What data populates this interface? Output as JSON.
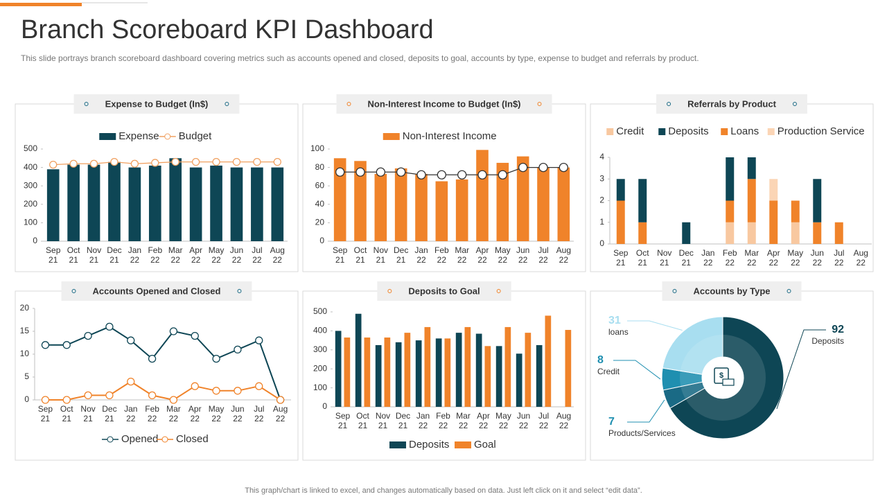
{
  "title": "Branch Scoreboard KPI Dashboard",
  "subtitle": "This slide portrays branch scoreboard dashboard covering metrics such as accounts opened and closed, deposits to goal, accounts by type, expense to budget and referrals by product.",
  "footer": "This graph/chart is linked to excel, and changes automatically based on data. Just left click on it and select “edit data”.",
  "chart_data": [
    {
      "type": "bar",
      "title": "Expense to Budget (In$)",
      "legend": "top",
      "categories": [
        "Sep 21",
        "Oct 21",
        "Nov 21",
        "Dec 21",
        "Jan 22",
        "Feb 22",
        "Mar 22",
        "Apr 22",
        "May 22",
        "Jun 22",
        "Jul 22",
        "Aug 22"
      ],
      "ylim": [
        0,
        500
      ],
      "yticks": [
        0,
        100,
        200,
        300,
        400,
        500
      ],
      "series": [
        {
          "name": "Expense",
          "color": "#0e4655",
          "values": [
            390,
            415,
            415,
            430,
            400,
            410,
            450,
            400,
            410,
            400,
            400,
            400
          ]
        },
        {
          "name": "Budget",
          "color": "#f0a060",
          "type": "line",
          "values": [
            415,
            420,
            420,
            430,
            420,
            425,
            430,
            430,
            430,
            430,
            430,
            430
          ]
        }
      ]
    },
    {
      "type": "bar",
      "title": "Non-Interest Income  to Budget (In$)",
      "legend": "top",
      "categories": [
        "Sep 21",
        "Oct 21",
        "Nov 21",
        "Dec 21",
        "Jan 22",
        "Feb 22",
        "Mar 22",
        "Apr 22",
        "May 22",
        "Jun 22",
        "Jul 22",
        "Aug 22"
      ],
      "ylim": [
        0,
        100
      ],
      "yticks": [
        0,
        20,
        40,
        60,
        80,
        100
      ],
      "series": [
        {
          "name": "Non-Interest Income",
          "color": "#f0832a",
          "values": [
            90,
            87,
            73,
            79,
            73,
            65,
            67,
            99,
            85,
            92,
            80,
            80
          ]
        },
        {
          "color": "#333333",
          "type": "line",
          "values": [
            75,
            75,
            75,
            75,
            72,
            72,
            72,
            72,
            72,
            80,
            80,
            80
          ]
        }
      ]
    },
    {
      "type": "stacked_bar",
      "title": "Referrals by Product",
      "legend": "top",
      "categories": [
        "Sep 21",
        "Oct 21",
        "Nov 21",
        "Dec 21",
        "Jan 22",
        "Feb 22",
        "Mar 22",
        "Apr 22",
        "May 22",
        "Jun 22",
        "Jul 22",
        "Aug 22"
      ],
      "ylim": [
        0,
        4
      ],
      "yticks": [
        0,
        1,
        2,
        3,
        4
      ],
      "series": [
        {
          "name": "Credit",
          "color": "#f8c8a0",
          "values": [
            0,
            0,
            0,
            0,
            0,
            1,
            1,
            0,
            1,
            0,
            0,
            0
          ]
        },
        {
          "name": "Deposits",
          "color": "#0e4655",
          "values": [
            1,
            2,
            0,
            1,
            0,
            2,
            1,
            0,
            0,
            2,
            0,
            0
          ]
        },
        {
          "name": "Loans",
          "color": "#f0832a",
          "values": [
            2,
            1,
            0,
            0,
            0,
            1,
            2,
            2,
            1,
            1,
            1,
            0
          ]
        },
        {
          "name": "Production Service",
          "color": "#fbd5b5",
          "values": [
            0,
            0,
            0,
            0,
            0,
            0,
            0,
            1,
            0,
            0,
            0,
            0
          ]
        }
      ]
    },
    {
      "type": "line",
      "title": "Accounts Opened and Closed",
      "legend": "bottom",
      "categories": [
        "Sep 21",
        "Oct 21",
        "Nov 21",
        "Dec 21",
        "Jan 22",
        "Feb 22",
        "Mar 22",
        "Apr 22",
        "May 22",
        "Jun 22",
        "Jul 22",
        "Aug 22"
      ],
      "ylim": [
        0,
        20
      ],
      "yticks": [
        0,
        5,
        10,
        15,
        20
      ],
      "series": [
        {
          "name": "Opened",
          "color": "#0e4655",
          "values": [
            12,
            12,
            14,
            16,
            13,
            9,
            15,
            14,
            9,
            11,
            13,
            0
          ]
        },
        {
          "name": "Closed",
          "color": "#f0832a",
          "values": [
            0,
            0,
            1,
            1,
            4,
            1,
            0,
            3,
            2,
            2,
            3,
            0
          ]
        }
      ]
    },
    {
      "type": "bar",
      "title": "Deposits to Goal",
      "legend": "bottom",
      "categories": [
        "Sep 21",
        "Oct 21",
        "Nov 21",
        "Dec 21",
        "Jan 22",
        "Feb 22",
        "Mar 22",
        "Apr 22",
        "May 22",
        "Jun 22",
        "Jul 22",
        "Aug 22"
      ],
      "ylim": [
        0,
        500
      ],
      "yticks": [
        0,
        100,
        200,
        300,
        400,
        500
      ],
      "series": [
        {
          "name": "Deposits",
          "color": "#0e4655",
          "values": [
            400,
            490,
            325,
            340,
            350,
            360,
            390,
            385,
            320,
            280,
            325,
            null
          ]
        },
        {
          "name": "Goal",
          "color": "#f0832a",
          "values": [
            365,
            365,
            365,
            390,
            420,
            360,
            420,
            320,
            420,
            390,
            480,
            405
          ]
        }
      ]
    },
    {
      "type": "donut",
      "title": "Accounts by Type",
      "categories": [
        "Deposits",
        "Products/Services",
        "Credit",
        "loans"
      ],
      "values": [
        92,
        7,
        8,
        31
      ],
      "colors": [
        "#0e4655",
        "#1a6a85",
        "#1f8fb0",
        "#a8def0"
      ]
    }
  ]
}
